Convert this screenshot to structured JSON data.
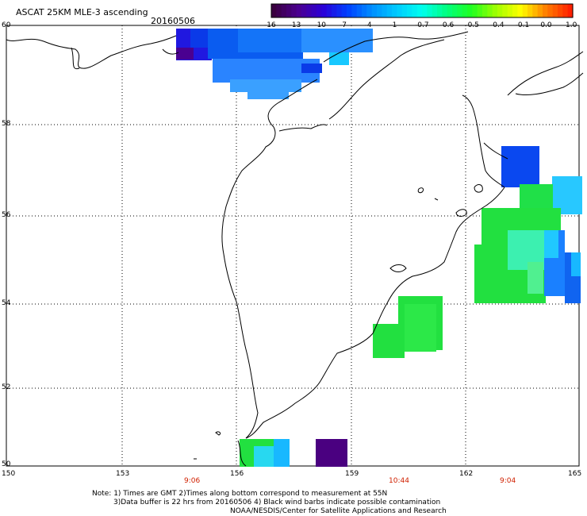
{
  "title": "ASCAT 25KM MLE-3 ascending",
  "date": "20160506",
  "colorbar": {
    "labels": [
      "-16",
      "-13",
      "-10",
      "-7",
      "-4",
      "-1",
      "-0.7",
      "-0.6",
      "-0.5",
      "-0.4",
      "-0.1",
      "0.0",
      "1.0"
    ],
    "colors": [
      "#3a0040",
      "#4b0090",
      "#2a00d8",
      "#0040ff",
      "#0090ff",
      "#00ccff",
      "#00ffee",
      "#00ff80",
      "#20ff20",
      "#a0ff00",
      "#ffff00",
      "#ff8000",
      "#ff2000"
    ]
  },
  "axes": {
    "lat_labels": [
      "60",
      "58",
      "56",
      "54",
      "52",
      "50"
    ],
    "lon_labels": [
      "150",
      "153",
      "156",
      "159",
      "162",
      "165"
    ]
  },
  "times": [
    "9:06",
    "10:44",
    "9:04"
  ],
  "notes": [
    "Note: 1) Times are GMT 2)Times along bottom correspond to measurement at 55N",
    "3)Data buffer is 22 hrs from 20160506 4) Black wind barbs indicate possible contamination",
    "NOAA/NESDIS/Center for Satellite Applications and Research"
  ]
}
